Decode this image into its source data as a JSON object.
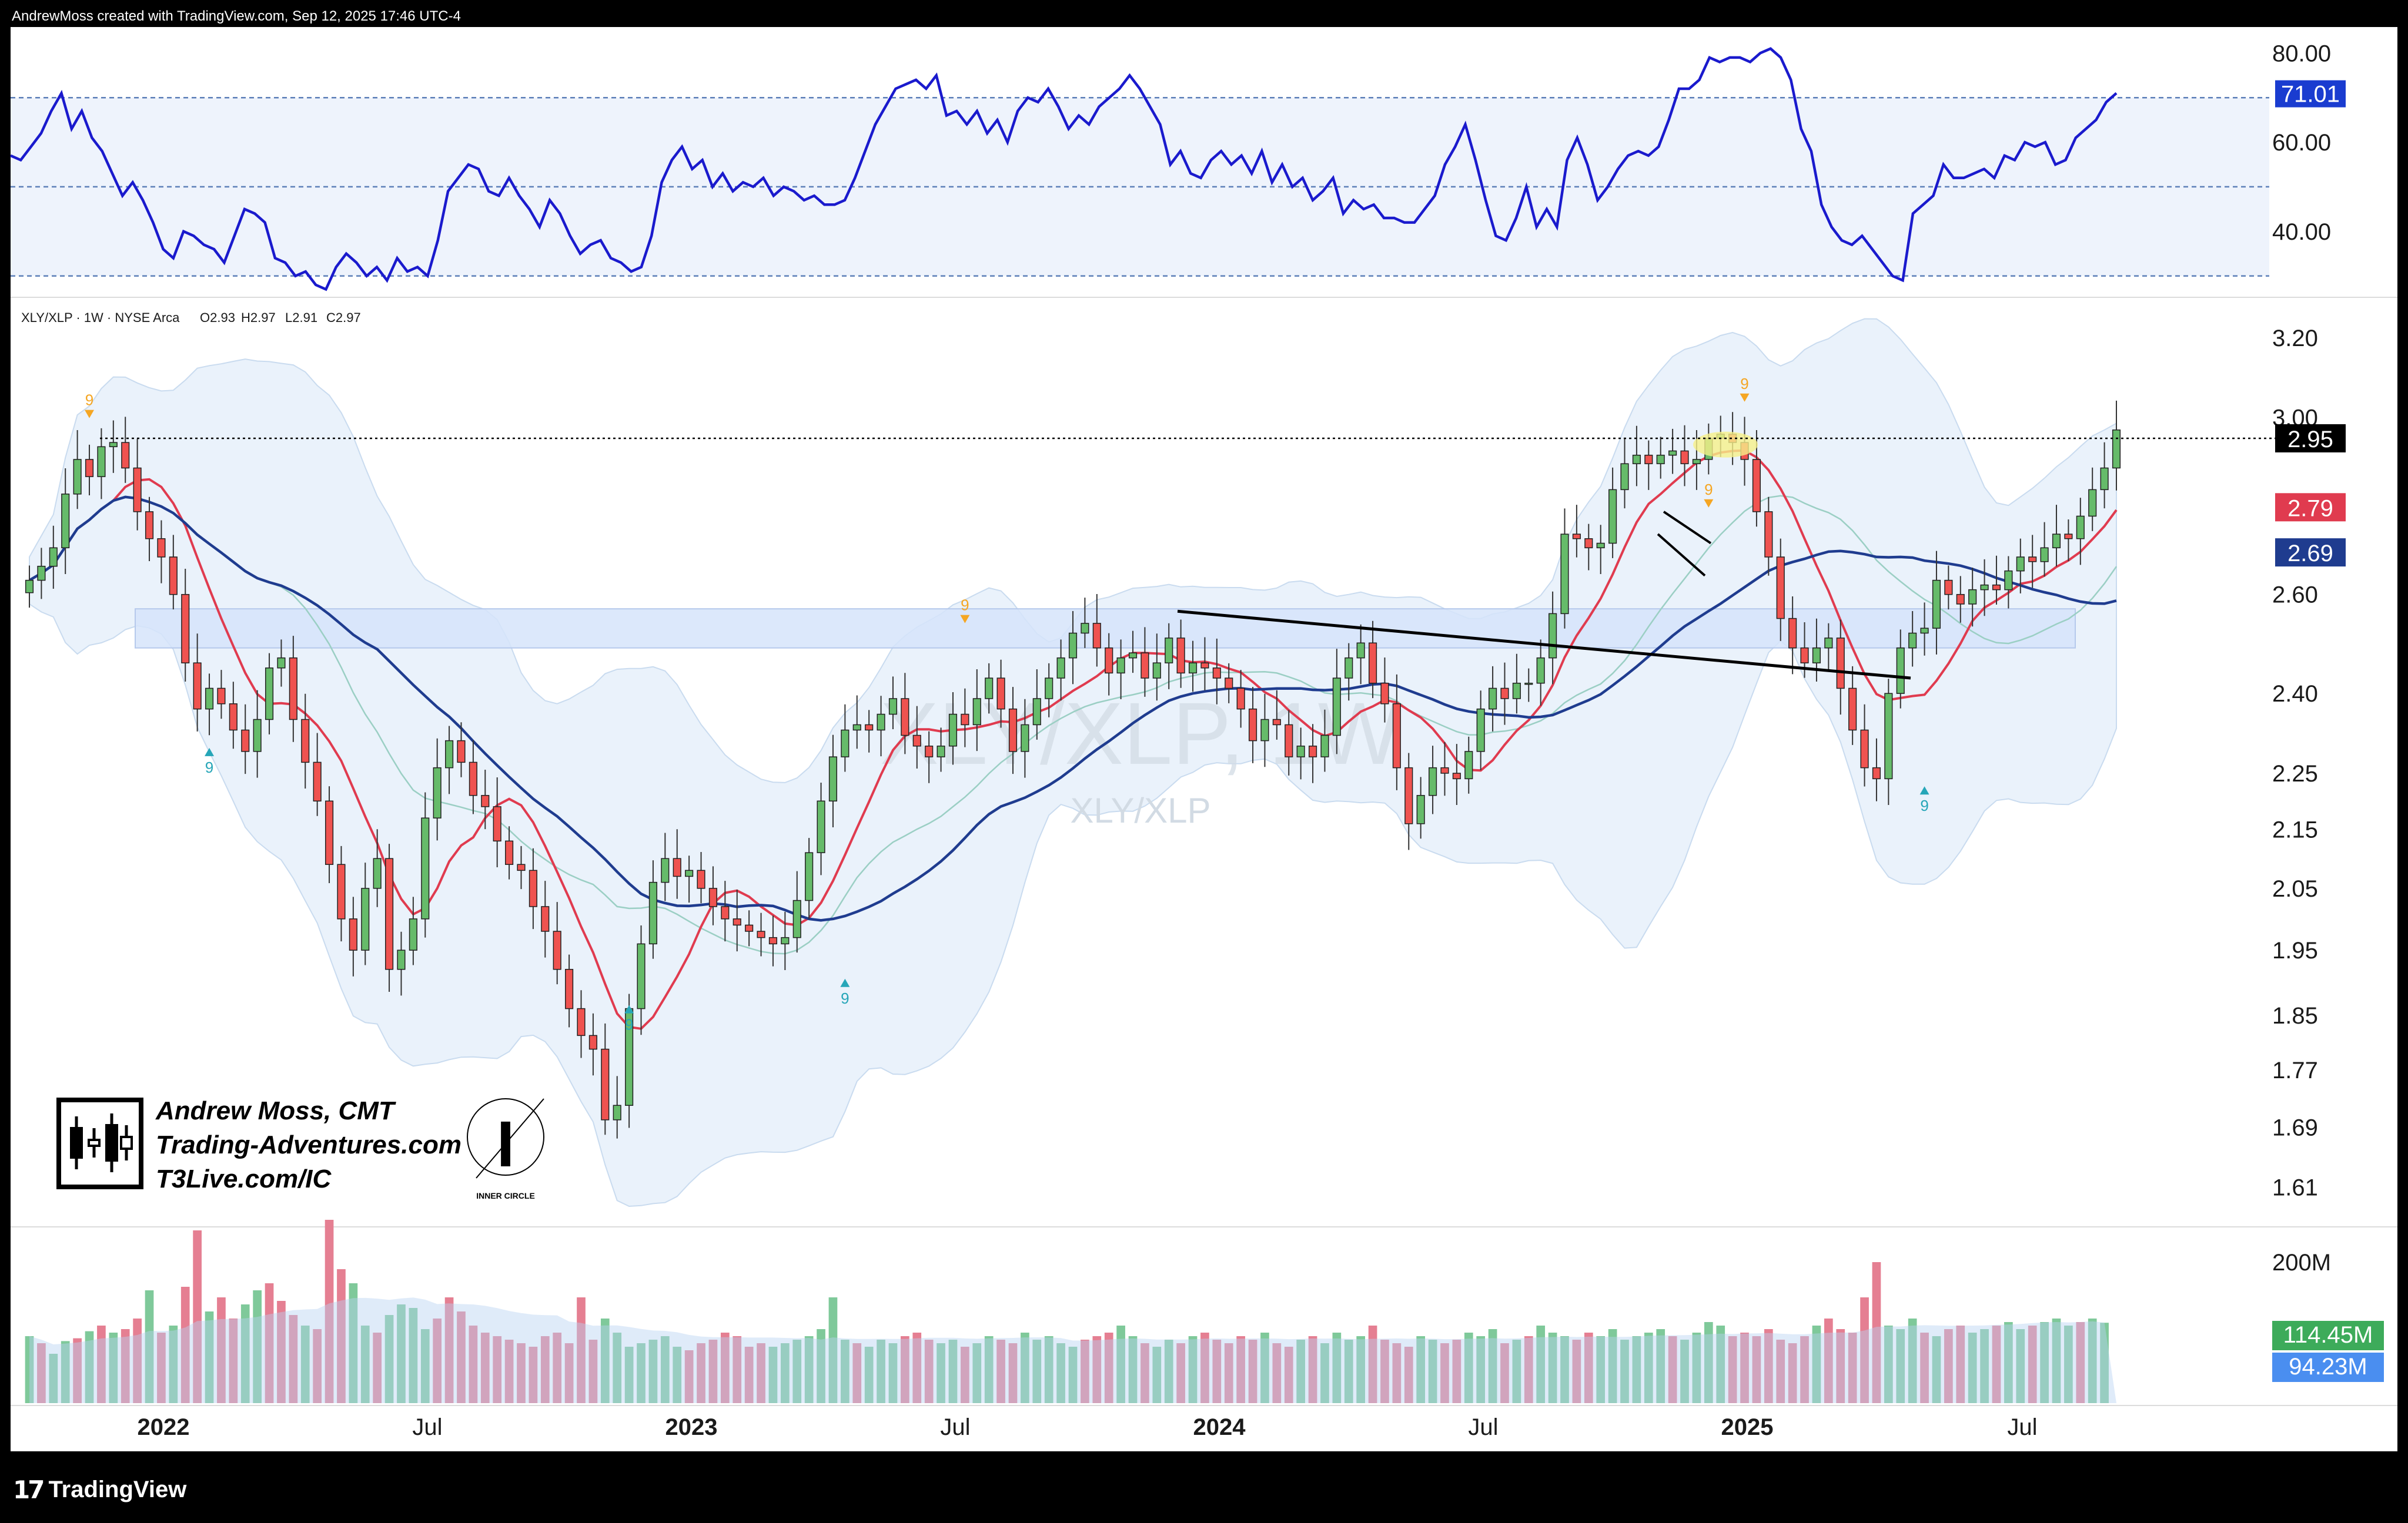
{
  "header": {
    "attribution": "AndrewMoss created with TradingView.com, Sep 12, 2025 17:46 UTC-4"
  },
  "footer": {
    "brand": "TradingView"
  },
  "symbol_info": {
    "label": "XLY/XLP · 1W · NYSE Arca",
    "open": "O2.93",
    "high": "H2.97",
    "low": "L2.91",
    "close": "C2.97"
  },
  "watermark": {
    "big": "XLY/XLP, 1W",
    "small": "XLY/XLP"
  },
  "branding": {
    "line1": "Andrew Moss, CMT",
    "line2": "Trading-Adventures.com",
    "line3": "T3Live.com/IC",
    "inner_circle": "INNER CIRCLE",
    "inner_circle_letter": "I"
  },
  "colors": {
    "up": "#66bb6a",
    "down": "#ef5350",
    "up_vol": "#7fc99a",
    "down_vol": "#e57f92",
    "rsi_line": "#1a1acd",
    "ma_fast": "#e03b4f",
    "ma_slow": "#1f3c8f",
    "ma_mid": "#9bcfc4",
    "band_fill": "#e3eefa",
    "zone": "#d6e4fa",
    "seq_sell": "#f5a623",
    "seq_buy": "#26a6b8",
    "grid_text": "#1a1a1a"
  },
  "chart_data": [
    {
      "type": "line",
      "name": "RSI panel",
      "axis_ticks": [
        "80.00",
        "60.00",
        "40.00"
      ],
      "guide_levels": [
        70,
        50,
        30
      ],
      "current_label": "71.01",
      "ylim": [
        26,
        84
      ],
      "x_range": [
        "2021-09",
        "2025-09"
      ],
      "values": [
        57,
        56,
        59,
        62,
        67,
        71,
        63,
        67,
        61,
        58,
        53,
        48,
        51,
        47,
        42,
        36,
        34,
        40,
        39,
        37,
        36,
        33,
        39,
        45,
        44,
        42,
        34,
        33,
        30,
        31,
        28,
        27,
        32,
        35,
        33,
        30,
        32,
        29,
        34,
        31,
        32,
        30,
        38,
        49,
        52,
        55,
        54,
        49,
        48,
        52,
        48,
        45,
        41,
        47,
        44,
        39,
        35,
        37,
        38,
        34,
        33,
        31,
        32,
        39,
        51,
        56,
        59,
        54,
        56,
        50,
        53,
        49,
        51,
        50,
        52,
        48,
        50,
        49,
        47,
        48,
        46,
        46,
        47,
        52,
        58,
        64,
        68,
        72,
        73,
        74,
        72,
        75,
        66,
        67,
        64,
        67,
        62,
        65,
        60,
        67,
        70,
        69,
        72,
        68,
        63,
        66,
        64,
        68,
        70,
        72,
        75,
        72,
        68,
        64,
        55,
        58,
        53,
        52,
        56,
        58,
        55,
        57,
        53,
        58,
        51,
        55,
        50,
        52,
        47,
        49,
        52,
        44,
        47,
        45,
        46,
        43,
        43,
        42,
        42,
        45,
        48,
        55,
        59,
        64,
        56,
        47,
        39,
        38,
        43,
        50,
        41,
        45,
        41,
        56,
        61,
        55,
        47,
        50,
        54,
        57,
        58,
        57,
        59,
        65,
        72,
        72,
        74,
        79,
        78,
        79,
        79,
        78,
        80,
        81,
        79,
        74,
        63,
        58,
        46,
        41,
        38,
        37,
        39,
        36,
        33,
        30,
        29,
        44,
        46,
        48,
        55,
        52,
        52,
        53,
        54,
        52,
        57,
        56,
        60,
        59,
        60,
        55,
        56,
        61,
        63,
        65,
        69,
        71
      ],
      "yAxisMin": 26,
      "yAxisMax": 84
    },
    {
      "type": "candlestick",
      "name": "XLY/XLP 1W",
      "axis_ticks": [
        "3.20",
        "3.00",
        "2.60",
        "2.40",
        "2.25",
        "2.15",
        "2.05",
        "1.95",
        "1.85",
        "1.77",
        "1.69",
        "1.61"
      ],
      "log_scale": true,
      "ylim": [
        1.565,
        3.3
      ],
      "price_labels": [
        {
          "text": "2.95",
          "value": 2.95,
          "color": "#000000"
        },
        {
          "text": "2.79",
          "value": 2.79,
          "color": "#e03b4f"
        },
        {
          "text": "2.69",
          "value": 2.69,
          "color": "#1f3c8f"
        }
      ],
      "x_labels": [
        "2022",
        "Jul",
        "2023",
        "Jul",
        "2024",
        "Jul",
        "2025",
        "Jul"
      ],
      "closes": [
        2.63,
        2.66,
        2.7,
        2.82,
        2.9,
        2.86,
        2.93,
        2.94,
        2.88,
        2.78,
        2.72,
        2.68,
        2.6,
        2.46,
        2.37,
        2.41,
        2.38,
        2.33,
        2.29,
        2.35,
        2.45,
        2.47,
        2.35,
        2.27,
        2.2,
        2.09,
        2.0,
        1.95,
        2.05,
        2.1,
        1.92,
        1.95,
        2.0,
        2.17,
        2.26,
        2.31,
        2.27,
        2.21,
        2.19,
        2.13,
        2.09,
        2.08,
        2.02,
        1.98,
        1.92,
        1.86,
        1.82,
        1.8,
        1.7,
        1.72,
        1.86,
        1.96,
        2.06,
        2.1,
        2.07,
        2.08,
        2.05,
        2.02,
        2.0,
        1.99,
        1.98,
        1.97,
        1.96,
        1.97,
        2.03,
        2.11,
        2.2,
        2.28,
        2.33,
        2.34,
        2.33,
        2.36,
        2.39,
        2.32,
        2.3,
        2.28,
        2.3,
        2.36,
        2.34,
        2.39,
        2.43,
        2.37,
        2.29,
        2.34,
        2.39,
        2.43,
        2.47,
        2.52,
        2.54,
        2.49,
        2.44,
        2.47,
        2.48,
        2.43,
        2.46,
        2.51,
        2.44,
        2.46,
        2.45,
        2.43,
        2.41,
        2.37,
        2.31,
        2.35,
        2.34,
        2.28,
        2.3,
        2.28,
        2.32,
        2.43,
        2.47,
        2.5,
        2.42,
        2.38,
        2.26,
        2.16,
        2.21,
        2.26,
        2.25,
        2.24,
        2.29,
        2.37,
        2.41,
        2.39,
        2.42,
        2.42,
        2.47,
        2.56,
        2.73,
        2.72,
        2.7,
        2.71,
        2.83,
        2.89,
        2.91,
        2.89,
        2.91,
        2.92,
        2.89,
        2.9,
        2.95,
        2.96,
        2.94,
        2.9,
        2.78,
        2.68,
        2.55,
        2.49,
        2.46,
        2.49,
        2.51,
        2.41,
        2.33,
        2.26,
        2.24,
        2.4,
        2.49,
        2.52,
        2.53,
        2.63,
        2.6,
        2.58,
        2.61,
        2.62,
        2.61,
        2.65,
        2.68,
        2.67,
        2.7,
        2.73,
        2.72,
        2.77,
        2.83,
        2.88,
        2.97
      ]
    },
    {
      "type": "bar",
      "name": "Volume",
      "axis_ticks": [
        "200M"
      ],
      "ylim": [
        0,
        250
      ],
      "current_label": "114.45M",
      "ma_label": "94.23M",
      "values": [
        95,
        85,
        70,
        88,
        92,
        102,
        110,
        100,
        105,
        120,
        160,
        100,
        110,
        165,
        245,
        130,
        150,
        120,
        140,
        160,
        170,
        145,
        125,
        110,
        105,
        260,
        190,
        170,
        110,
        100,
        125,
        140,
        135,
        105,
        120,
        150,
        130,
        110,
        100,
        95,
        90,
        85,
        80,
        95,
        100,
        85,
        150,
        90,
        120,
        100,
        80,
        85,
        90,
        95,
        80,
        75,
        85,
        90,
        100,
        95,
        80,
        85,
        80,
        85,
        90,
        95,
        105,
        150,
        90,
        85,
        80,
        90,
        85,
        95,
        100,
        90,
        85,
        90,
        80,
        85,
        95,
        90,
        85,
        100,
        90,
        95,
        85,
        80,
        90,
        95,
        100,
        110,
        95,
        85,
        80,
        90,
        85,
        95,
        100,
        90,
        85,
        95,
        90,
        100,
        85,
        80,
        90,
        95,
        85,
        100,
        90,
        95,
        110,
        90,
        85,
        80,
        95,
        90,
        85,
        90,
        100,
        95,
        105,
        85,
        90,
        95,
        110,
        100,
        95,
        90,
        100,
        95,
        105,
        90,
        95,
        100,
        105,
        95,
        90,
        100,
        115,
        110,
        95,
        100,
        95,
        105,
        90,
        85,
        95,
        110,
        120,
        105,
        100,
        150,
        200,
        110,
        105,
        120,
        100,
        95,
        105,
        110,
        100,
        105,
        110,
        115,
        105,
        110,
        115,
        120,
        110,
        115,
        120,
        114
      ],
      "up_mask": [
        1,
        0,
        1,
        1,
        0,
        1,
        0,
        1,
        0,
        0,
        1,
        0,
        1,
        0,
        0,
        1,
        0,
        0,
        1,
        1,
        0,
        0,
        0,
        1,
        0,
        0,
        0,
        1,
        1,
        0,
        1,
        1,
        1,
        1,
        0,
        0,
        0,
        0,
        0,
        0,
        0,
        0,
        0,
        0,
        0,
        0,
        0,
        0,
        1,
        1,
        1,
        1,
        1,
        1,
        1,
        0,
        0,
        0,
        0,
        0,
        0,
        0,
        1,
        1,
        1,
        1,
        1,
        1,
        1,
        0,
        1,
        1,
        1,
        0,
        0,
        0,
        1,
        1,
        0,
        1,
        1,
        0,
        0,
        1,
        1,
        1,
        1,
        1,
        0,
        0,
        0,
        1,
        1,
        0,
        1,
        1,
        0,
        1,
        0,
        0,
        0,
        0,
        0,
        1,
        0,
        0,
        1,
        0,
        1,
        1,
        1,
        1,
        0,
        0,
        0,
        0,
        1,
        1,
        0,
        0,
        1,
        1,
        1,
        0,
        1,
        0,
        1,
        1,
        1,
        0,
        0,
        1,
        1,
        1,
        1,
        1,
        1,
        0,
        1,
        1,
        1,
        1,
        0,
        0,
        0,
        0,
        0,
        0,
        0,
        1,
        0,
        0,
        0,
        0,
        0,
        1,
        1,
        1,
        0,
        1,
        0,
        0,
        1,
        1,
        0,
        1,
        1,
        0,
        1,
        1,
        1,
        0,
        1,
        1,
        1,
        1
      ]
    }
  ]
}
